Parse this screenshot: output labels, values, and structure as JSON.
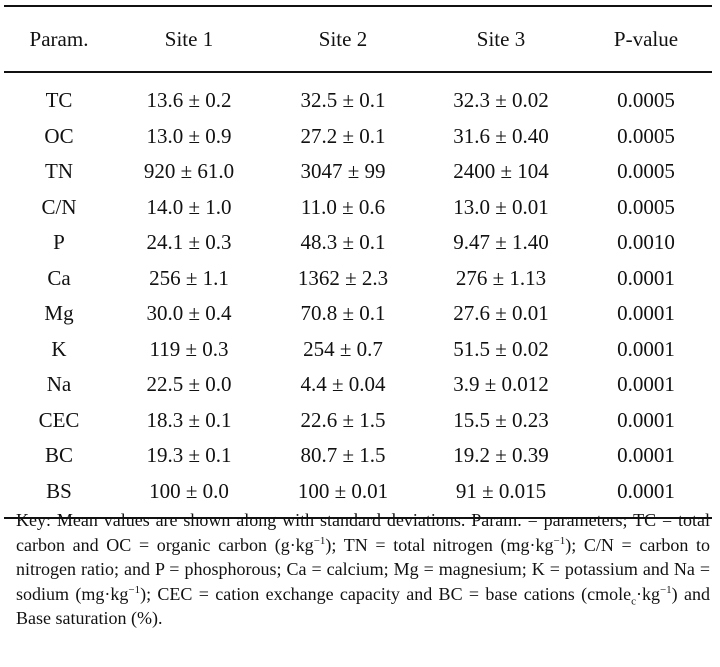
{
  "table": {
    "headers": [
      "Param.",
      "Site 1",
      "Site 2",
      "Site 3",
      "P-value"
    ],
    "rows": [
      [
        "TC",
        "13.6 ± 0.2",
        "32.5 ± 0.1",
        "32.3 ± 0.02",
        "0.0005"
      ],
      [
        "OC",
        "13.0 ± 0.9",
        "27.2 ± 0.1",
        "31.6 ± 0.40",
        "0.0005"
      ],
      [
        "TN",
        "920 ± 61.0",
        "3047 ± 99",
        "2400 ± 104",
        "0.0005"
      ],
      [
        "C/N",
        "14.0 ± 1.0",
        "11.0 ± 0.6",
        "13.0 ± 0.01",
        "0.0005"
      ],
      [
        "P",
        "24.1 ± 0.3",
        "48.3 ± 0.1",
        "9.47 ± 1.40",
        "0.0010"
      ],
      [
        "Ca",
        "256 ± 1.1",
        "1362 ± 2.3",
        "276 ± 1.13",
        "0.0001"
      ],
      [
        "Mg",
        "30.0 ± 0.4",
        "70.8 ± 0.1",
        "27.6 ± 0.01",
        "0.0001"
      ],
      [
        "K",
        "119 ± 0.3",
        "254 ± 0.7",
        "51.5 ± 0.02",
        "0.0001"
      ],
      [
        "Na",
        "22.5 ± 0.0",
        "4.4 ± 0.04",
        "3.9 ± 0.012",
        "0.0001"
      ],
      [
        "CEC",
        "18.3 ± 0.1",
        "22.6 ± 1.5",
        "15.5 ± 0.23",
        "0.0001"
      ],
      [
        "BC",
        "19.3 ± 0.1",
        "80.7 ± 1.5",
        "19.2 ± 0.39",
        "0.0001"
      ],
      [
        "BS",
        "100 ± 0.0",
        "100 ± 0.01",
        "91 ± 0.015",
        "0.0001"
      ]
    ]
  },
  "key": {
    "p1": "Key: Mean values are shown along with standard deviations. Param. = parameters; TC = total carbon and OC = organic carbon (g·kg",
    "sup1": "−1",
    "p2": "); TN = total nitrogen (mg·kg",
    "sup2": "−1",
    "p3": "); C/N = carbon to nitrogen ratio; and P = phosphorous; Ca = calcium; Mg = magnesium; K = potassium and Na = sodium (mg·kg",
    "sup3": "−1",
    "p4": "); CEC = cation exchange capacity and BC = base cations (cmole",
    "sub4": "c",
    "p5": "·kg",
    "sup5": "−1",
    "p6": ") and Base saturation (%)."
  }
}
